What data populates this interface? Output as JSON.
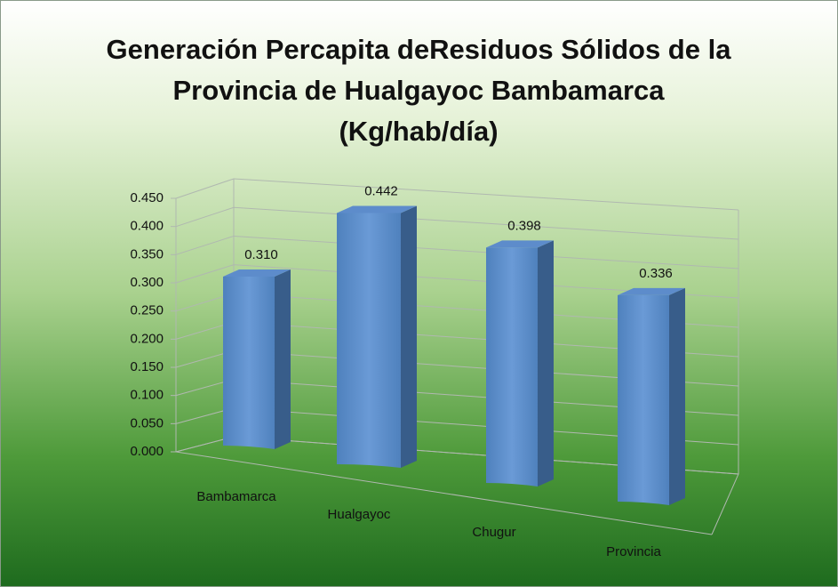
{
  "chart_data": {
    "type": "bar3d",
    "title": "Generación Percapita deResiduos Sólidos de la Provincia de Hualgayoc Bambamarca (Kg/hab/día)",
    "categories": [
      "Bambamarca",
      "Hualgayoc",
      "Chugur",
      "Provincia"
    ],
    "values": [
      0.31,
      0.442,
      0.398,
      0.336
    ],
    "value_labels": [
      "0.310",
      "0.442",
      "0.398",
      "0.336"
    ],
    "color": "#4f81bd",
    "ylim": [
      0,
      0.45
    ],
    "yticks": [
      {
        "value": 0,
        "label": "0.000"
      },
      {
        "value": 0.05,
        "label": "0.050"
      },
      {
        "value": 0.1,
        "label": "0.100"
      },
      {
        "value": 0.15,
        "label": "0.150"
      },
      {
        "value": 0.2,
        "label": "0.200"
      },
      {
        "value": 0.25,
        "label": "0.250"
      },
      {
        "value": 0.3,
        "label": "0.300"
      },
      {
        "value": 0.35,
        "label": "0.350"
      },
      {
        "value": 0.4,
        "label": "0.400"
      },
      {
        "value": 0.45,
        "label": "0.450"
      }
    ],
    "grid": true
  }
}
